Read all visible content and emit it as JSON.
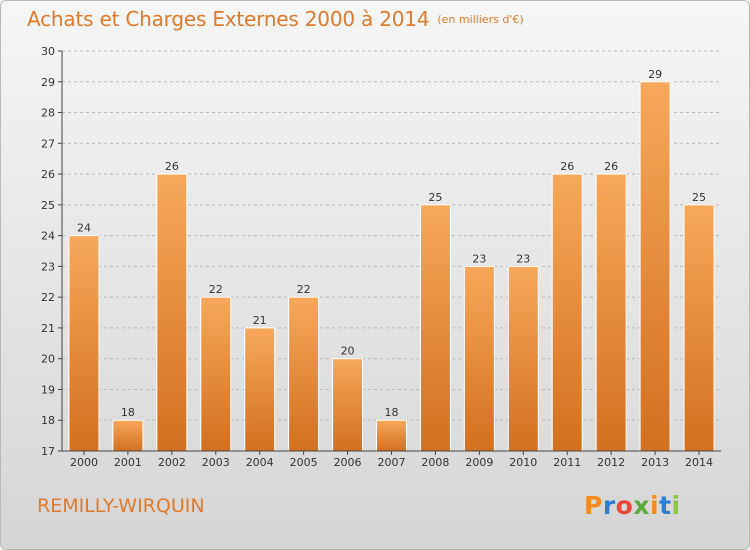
{
  "title": "Achats et Charges Externes 2000 à 2014",
  "unit": "(en milliers d'€)",
  "commune": "REMILLY-WIRQUIN",
  "brand": "Proxiti",
  "colors": {
    "title": "#e07a2a",
    "bar_top": "#f7a85a",
    "bar_bottom": "#d2701f",
    "grid": "#b8b8b8",
    "axis": "#444444",
    "logo": [
      "#f18a1f",
      "#2e7fd0",
      "#e8473a",
      "#5aaa3c",
      "#f18a1f",
      "#2e7fd0",
      "#8cc63f"
    ]
  },
  "chart_data": {
    "type": "bar",
    "title": "Achats et Charges Externes 2000 à 2014",
    "xlabel": "",
    "ylabel": "",
    "categories": [
      "2000",
      "2001",
      "2002",
      "2003",
      "2004",
      "2005",
      "2006",
      "2007",
      "2008",
      "2009",
      "2010",
      "2011",
      "2012",
      "2013",
      "2014"
    ],
    "values": [
      24,
      18,
      26,
      22,
      21,
      22,
      20,
      18,
      25,
      23,
      23,
      26,
      26,
      29,
      25
    ],
    "ylim": [
      17,
      30
    ],
    "yticks": [
      17,
      18,
      19,
      20,
      21,
      22,
      23,
      24,
      25,
      26,
      27,
      28,
      29,
      30
    ],
    "grid": true,
    "data_labels": true
  }
}
